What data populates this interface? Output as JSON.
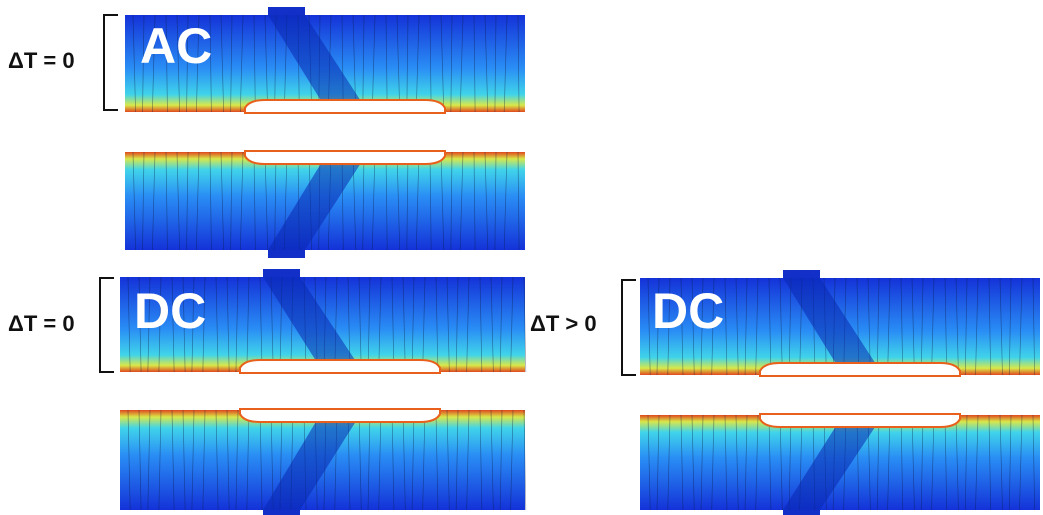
{
  "panels": [
    {
      "label": "ΔT = 0",
      "mode": "AC"
    },
    {
      "label": "ΔT = 0",
      "mode": "DC"
    },
    {
      "label": "ΔT > 0",
      "mode": "DC"
    }
  ]
}
